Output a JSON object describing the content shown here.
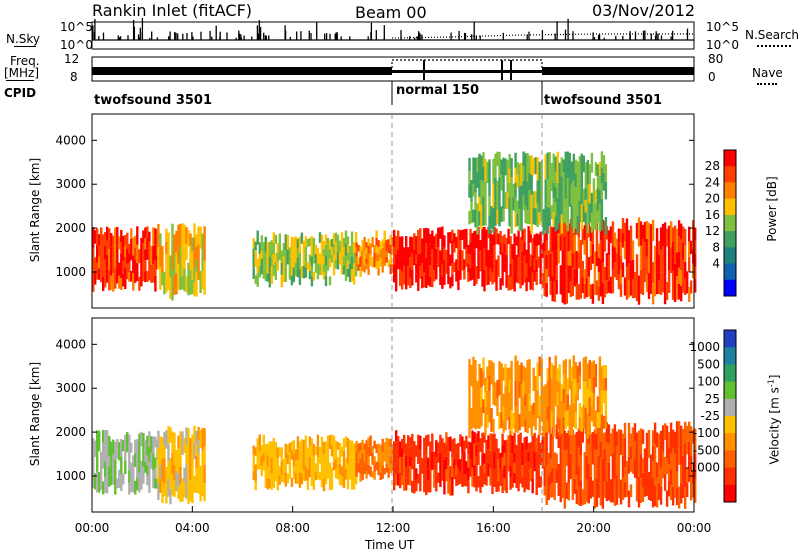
{
  "header": {
    "station": "Rankin Inlet (fitACF)",
    "beam": "Beam 00",
    "date": "03/Nov/2012"
  },
  "top_panels": {
    "nsky_label": "N.Sky",
    "nsearch_label": "N.Search",
    "freq_label_1": "Freq.",
    "freq_label_2": "[MHz]",
    "nave_label": "Nave",
    "cpid_label": "CPID",
    "nsky_ticks": [
      "10^5",
      "10^0"
    ],
    "nsearch_ticks": [
      "10^5",
      "10^0"
    ],
    "freq_ticks": [
      "12",
      "8"
    ],
    "nave_ticks": [
      "80",
      "0"
    ]
  },
  "cpid_segments": [
    {
      "label": "twofsound 3501",
      "start_hour": 0
    },
    {
      "label": "normal 150",
      "start_hour": 12
    },
    {
      "label": "twofsound 3501",
      "start_hour": 18
    }
  ],
  "colorbars": {
    "power": {
      "label": "Power [dB]",
      "ticks": [
        "28",
        "24",
        "20",
        "16",
        "12",
        "8",
        "4"
      ],
      "colors": [
        "#ff0000",
        "#ff4000",
        "#ff8000",
        "#ffc000",
        "#80c040",
        "#40a060",
        "#208080",
        "#1060b0",
        "#0000ff"
      ]
    },
    "velocity": {
      "label": "Velocity [m s",
      "label_sup": "-1",
      "label_end": "]",
      "ticks": [
        "1000",
        "500",
        "100",
        "25",
        "-25",
        "-100",
        "-500",
        "-1000"
      ],
      "colors": [
        "#2040c0",
        "#2080a0",
        "#30a060",
        "#60c030",
        "#b0b0b0",
        "#ffc000",
        "#ff9000",
        "#ff6000",
        "#ff3000",
        "#ff0000"
      ]
    }
  },
  "axes": {
    "ylabel": "Slant Range [km]",
    "xlabel": "Time UT",
    "y_ticks": [
      "4000",
      "3000",
      "2000",
      "1000"
    ],
    "x_ticks": [
      "00:00",
      "04:00",
      "08:00",
      "12:00",
      "16:00",
      "20:00",
      "00:00"
    ]
  },
  "chart_data": [
    {
      "type": "heatmap",
      "title": "",
      "xlabel": "",
      "ylabel": "Slant Range [km]",
      "xlim": [
        0,
        24
      ],
      "ylim": [
        180,
        4600
      ],
      "colorbar_label": "Power [dB]",
      "colorbar_range": [
        0,
        30
      ],
      "bands": [
        {
          "t_start": 0.0,
          "t_end": 2.6,
          "r_low": 700,
          "r_high": 1900,
          "value": 26
        },
        {
          "t_start": 2.6,
          "t_end": 4.5,
          "r_low": 500,
          "r_high": 2000,
          "value": 18
        },
        {
          "t_start": 6.4,
          "t_end": 10.5,
          "r_low": 800,
          "r_high": 1800,
          "value": 16
        },
        {
          "t_start": 10.5,
          "t_end": 12.0,
          "r_low": 1000,
          "r_high": 1800,
          "value": 22
        },
        {
          "t_start": 12.0,
          "t_end": 18.0,
          "r_low": 700,
          "r_high": 1900,
          "value": 28
        },
        {
          "t_start": 18.0,
          "t_end": 24.0,
          "r_low": 400,
          "r_high": 2100,
          "value": 26
        },
        {
          "t_start": 15.0,
          "t_end": 20.5,
          "r_low": 2000,
          "r_high": 3600,
          "value": 14
        }
      ]
    },
    {
      "type": "heatmap",
      "title": "",
      "xlabel": "Time UT",
      "ylabel": "Slant Range [km]",
      "xlim": [
        0,
        24
      ],
      "ylim": [
        180,
        4600
      ],
      "colorbar_label": "Velocity [m s-1]",
      "colorbar_range": [
        -1000,
        1000
      ],
      "bands": [
        {
          "t_start": 0.0,
          "t_end": 2.6,
          "r_low": 700,
          "r_high": 1900,
          "value": 150
        },
        {
          "t_start": 2.6,
          "t_end": 4.5,
          "r_low": 500,
          "r_high": 2000,
          "value": -100
        },
        {
          "t_start": 6.4,
          "t_end": 10.5,
          "r_low": 800,
          "r_high": 1800,
          "value": -150
        },
        {
          "t_start": 10.5,
          "t_end": 12.0,
          "r_low": 1000,
          "r_high": 1800,
          "value": -400
        },
        {
          "t_start": 12.0,
          "t_end": 18.0,
          "r_low": 700,
          "r_high": 1900,
          "value": -700
        },
        {
          "t_start": 18.0,
          "t_end": 24.0,
          "r_low": 400,
          "r_high": 2100,
          "value": -600
        },
        {
          "t_start": 15.0,
          "t_end": 20.5,
          "r_low": 2000,
          "r_high": 3600,
          "value": -300
        }
      ]
    }
  ]
}
